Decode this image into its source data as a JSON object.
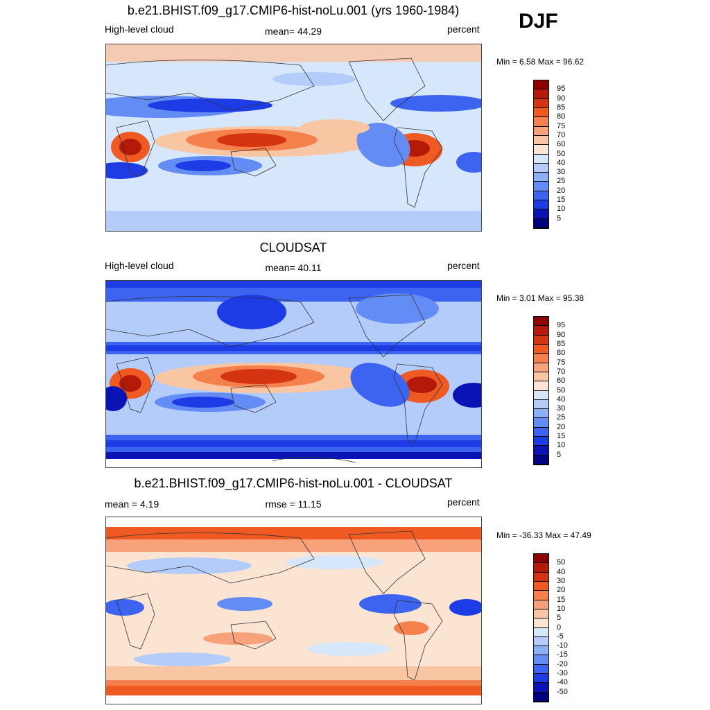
{
  "season": "DJF",
  "colors": {
    "abs_scale": [
      "#00007f",
      "#0a14b4",
      "#1e3ce6",
      "#3c64f0",
      "#648cf5",
      "#8cb0f8",
      "#b4ccfa",
      "#d6e6fb",
      "#fbe4d2",
      "#f9c6a4",
      "#f7a27a",
      "#f4804c",
      "#ef5a22",
      "#d43412",
      "#b41a08",
      "#8c0000"
    ],
    "diff_scale": [
      "#00007f",
      "#0a14b4",
      "#1e3ce6",
      "#3c64f0",
      "#648cf5",
      "#8cb0f8",
      "#b4ccfa",
      "#d6e6fb",
      "#fbe4d2",
      "#f9c6a4",
      "#f7a27a",
      "#f4804c",
      "#ef5a22",
      "#d43412",
      "#b41a08",
      "#8c0000"
    ]
  },
  "panels": [
    {
      "title": "b.e21.BHIST.f09_g17.CMIP6-hist-noLu.001 (yrs 1960-1984)",
      "left_label": "High-level cloud",
      "center_label": "mean=  44.29",
      "right_label": "percent",
      "minmax": "Min =   6.58 Max =  96.62",
      "colorbar_ticks": [
        "95",
        "90",
        "85",
        "80",
        "75",
        "70",
        "60",
        "50",
        "40",
        "30",
        "25",
        "20",
        "15",
        "10",
        "5"
      ]
    },
    {
      "title": "CLOUDSAT",
      "left_label": "High-level cloud",
      "center_label": "mean=  40.11",
      "right_label": "percent",
      "minmax": "Min =   3.01 Max =  95.38",
      "colorbar_ticks": [
        "95",
        "90",
        "85",
        "80",
        "75",
        "70",
        "60",
        "50",
        "40",
        "30",
        "25",
        "20",
        "15",
        "10",
        "5"
      ]
    },
    {
      "title": "b.e21.BHIST.f09_g17.CMIP6-hist-noLu.001 - CLOUDSAT",
      "left_label": "mean =   4.19",
      "center_label": "rmse =  11.15",
      "right_label": "percent",
      "minmax": "Min = -36.33 Max =  47.49",
      "colorbar_ticks": [
        "50",
        "40",
        "30",
        "20",
        "15",
        "10",
        "5",
        "0",
        "-5",
        "-10",
        "-15",
        "-20",
        "-30",
        "-40",
        "-50"
      ]
    }
  ]
}
